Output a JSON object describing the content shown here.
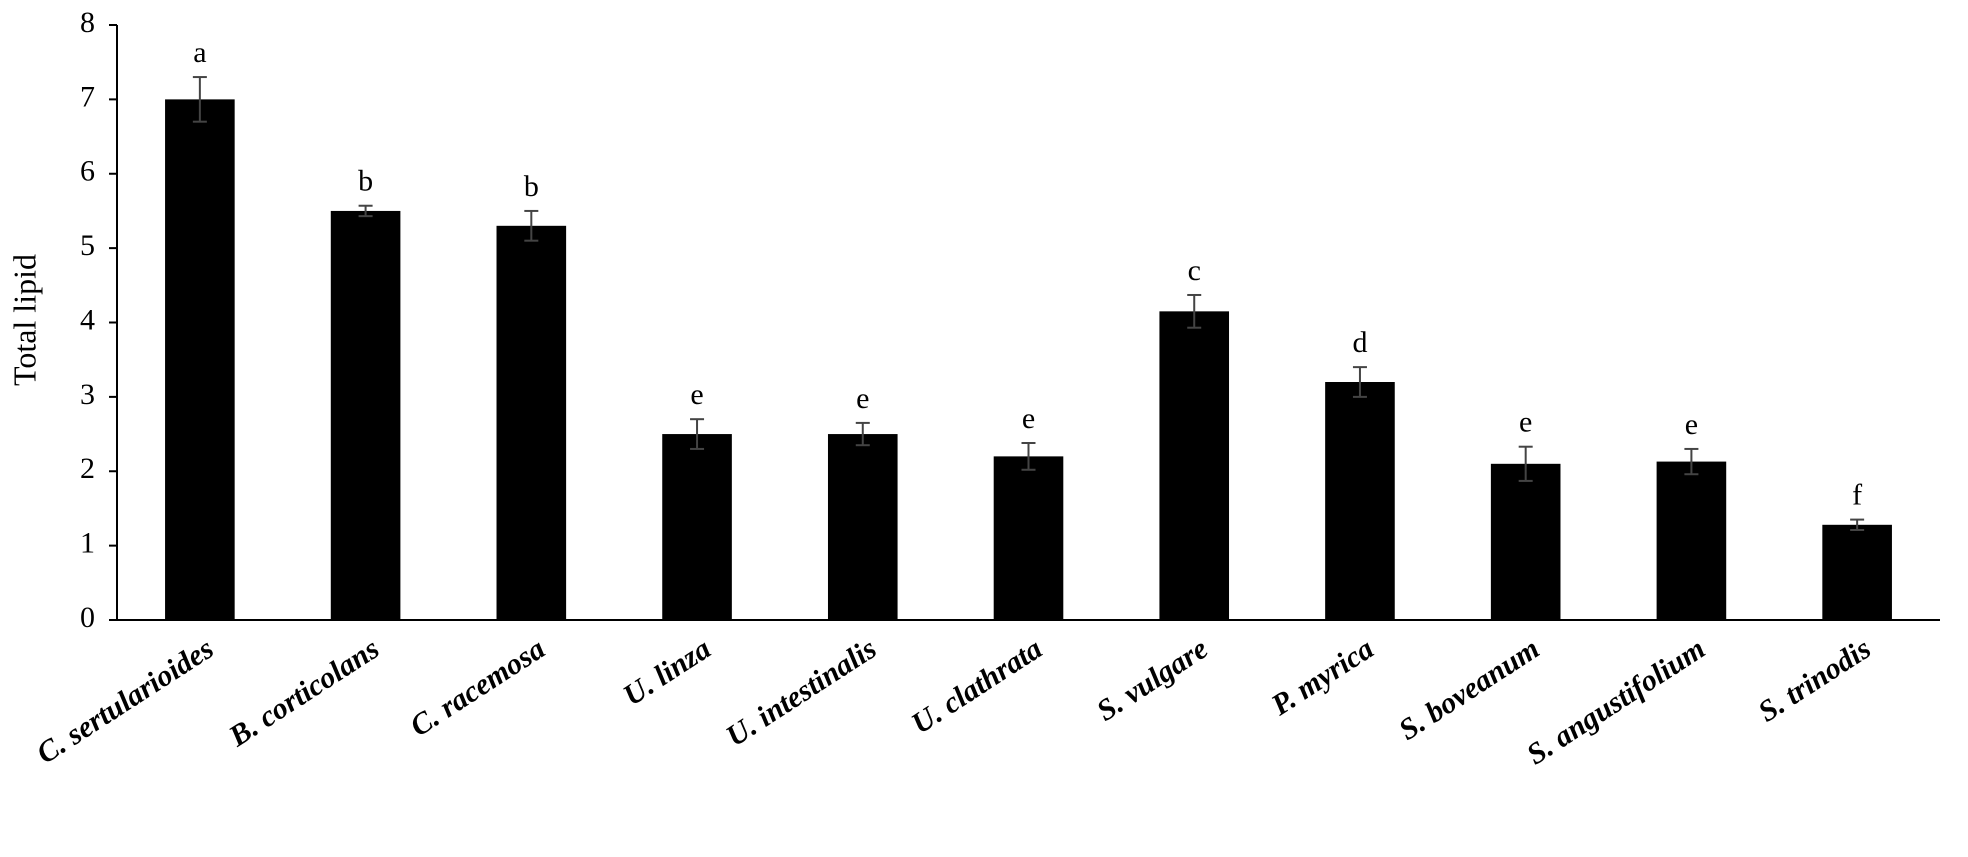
{
  "chart_data": {
    "type": "bar",
    "y_label": "Total lipid",
    "categories": [
      "C. sertularioides",
      "B. corticolans",
      "C. racemosa",
      "U. linza",
      "U. intestinalis",
      "U. clathrata",
      "S. vulgare",
      "P. myrica",
      "S. boveanum",
      "S. angustifolium",
      "S. trinodis"
    ],
    "values": [
      7.0,
      5.5,
      5.3,
      2.5,
      2.5,
      2.2,
      4.15,
      3.2,
      2.1,
      2.13,
      1.28
    ],
    "errors": [
      0.3,
      0.07,
      0.2,
      0.2,
      0.15,
      0.18,
      0.22,
      0.2,
      0.23,
      0.17,
      0.07
    ],
    "group_labels": [
      "a",
      "b",
      "b",
      "e",
      "e",
      "e",
      "c",
      "d",
      "e",
      "e",
      "f"
    ],
    "color": "#000000",
    "ylim": [
      0,
      8
    ],
    "yticks": [
      0,
      1,
      2,
      3,
      4,
      5,
      6,
      7,
      8
    ],
    "grid": false
  }
}
